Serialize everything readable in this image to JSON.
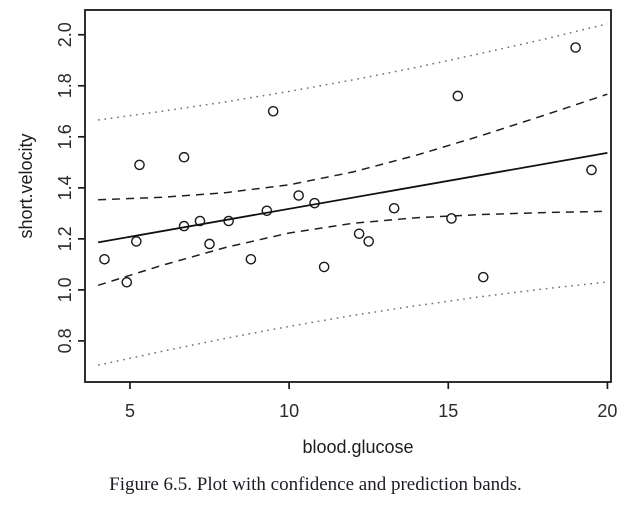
{
  "figure": {
    "caption": "Figure 6.5. Plot with confidence and prediction bands."
  },
  "chart_data": {
    "type": "scatter",
    "title": "",
    "xlabel": "blood.glucose",
    "ylabel": "short.velocity",
    "xlim": [
      3.588,
      20.112
    ],
    "ylim": [
      0.639,
      2.097
    ],
    "grid": false,
    "legend": "none",
    "x_ticks": [
      {
        "value": 5,
        "label": "5"
      },
      {
        "value": 10,
        "label": "10"
      },
      {
        "value": 15,
        "label": "15"
      },
      {
        "value": 20,
        "label": "20"
      }
    ],
    "y_ticks": [
      {
        "value": 0.8,
        "label": "0.8"
      },
      {
        "value": 1.0,
        "label": "1.0"
      },
      {
        "value": 1.2,
        "label": "1.2"
      },
      {
        "value": 1.4,
        "label": "1.4"
      },
      {
        "value": 1.6,
        "label": "1.6"
      },
      {
        "value": 1.8,
        "label": "1.8"
      },
      {
        "value": 2.0,
        "label": "2.0"
      }
    ],
    "regression": {
      "intercept": 1.098,
      "slope": 0.022
    },
    "series": [
      {
        "name": "observations",
        "type": "points",
        "points": [
          [
            4.2,
            1.12
          ],
          [
            4.9,
            1.03
          ],
          [
            5.2,
            1.19
          ],
          [
            5.3,
            1.49
          ],
          [
            6.7,
            1.25
          ],
          [
            6.7,
            1.52
          ],
          [
            7.2,
            1.27
          ],
          [
            7.5,
            1.18
          ],
          [
            8.1,
            1.27
          ],
          [
            8.8,
            1.12
          ],
          [
            9.3,
            1.31
          ],
          [
            9.5,
            1.7
          ],
          [
            10.3,
            1.37
          ],
          [
            10.8,
            1.34
          ],
          [
            11.1,
            1.09
          ],
          [
            12.2,
            1.22
          ],
          [
            12.5,
            1.19
          ],
          [
            13.3,
            1.32
          ],
          [
            15.1,
            1.28
          ],
          [
            15.3,
            1.76
          ],
          [
            16.1,
            1.05
          ],
          [
            19.0,
            1.95
          ],
          [
            19.5,
            1.47
          ]
        ]
      },
      {
        "name": "fitted-line",
        "type": "line",
        "style": "solid",
        "x": [
          4,
          20
        ],
        "y": [
          1.186,
          1.537
        ]
      },
      {
        "name": "confidence-band-upper",
        "type": "line",
        "style": "dashed",
        "x": [
          4,
          6,
          8,
          10,
          12,
          14,
          16,
          18,
          20
        ],
        "y": [
          1.353,
          1.363,
          1.381,
          1.412,
          1.462,
          1.528,
          1.603,
          1.684,
          1.767
        ]
      },
      {
        "name": "confidence-band-lower",
        "type": "line",
        "style": "dashed",
        "x": [
          4,
          6,
          8,
          10,
          12,
          14,
          16,
          18,
          20
        ],
        "y": [
          1.018,
          1.096,
          1.166,
          1.223,
          1.261,
          1.283,
          1.295,
          1.303,
          1.308
        ]
      },
      {
        "name": "prediction-band-upper",
        "type": "line",
        "style": "dotted",
        "x": [
          4,
          6,
          8,
          10,
          12,
          14,
          16,
          18,
          20
        ],
        "y": [
          1.666,
          1.7,
          1.737,
          1.778,
          1.823,
          1.872,
          1.926,
          1.982,
          2.043
        ]
      },
      {
        "name": "prediction-band-lower",
        "type": "line",
        "style": "dotted",
        "x": [
          4,
          6,
          8,
          10,
          12,
          14,
          16,
          18,
          20
        ],
        "y": [
          0.705,
          0.759,
          0.81,
          0.857,
          0.9,
          0.938,
          0.973,
          1.004,
          1.031
        ]
      }
    ],
    "colors": {
      "axis": "#1a1a1a",
      "points": "#1a1a1a",
      "solid_line": "#111111",
      "dashed_line": "#1f1f1f",
      "dotted_line": "#6e6e6e"
    }
  }
}
